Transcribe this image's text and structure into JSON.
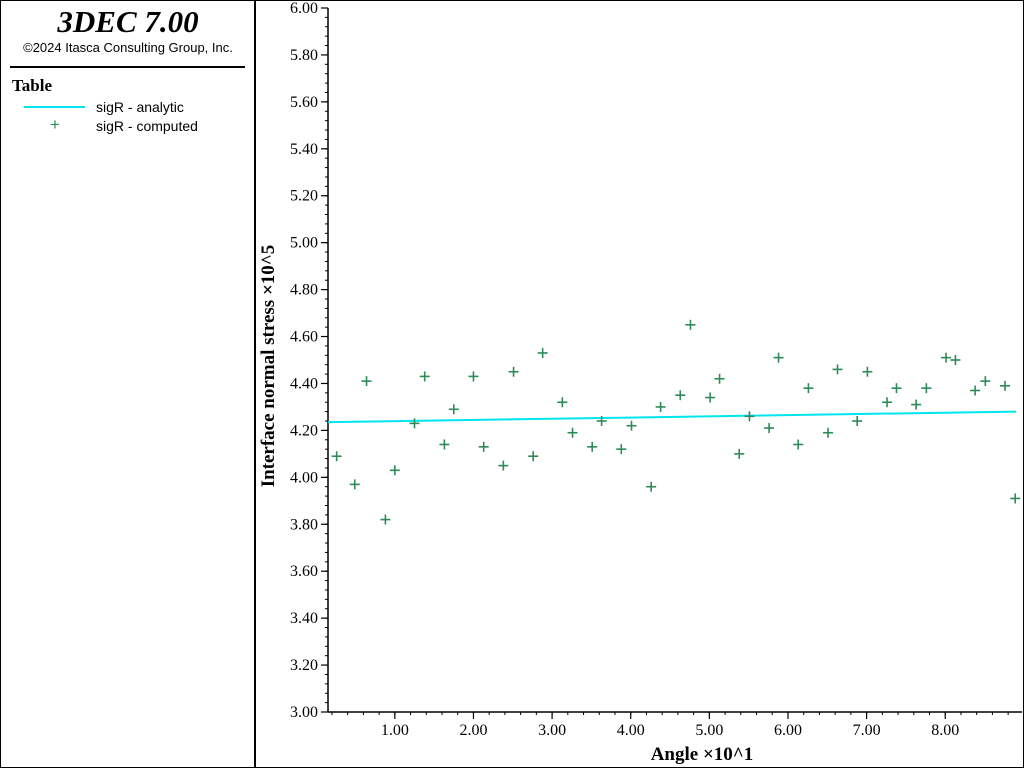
{
  "header": {
    "title": "3DEC 7.00",
    "copyright": "©2024 Itasca Consulting Group, Inc."
  },
  "legend": {
    "title": "Table",
    "items": [
      {
        "label": "sigR - analytic",
        "kind": "line",
        "color": "#00e5f0"
      },
      {
        "label": "sigR - computed",
        "kind": "marker",
        "symbol": "+",
        "color": "#2e8b57"
      }
    ]
  },
  "chart_data": {
    "type": "scatter",
    "title": "",
    "xlabel": "Angle ×10^1",
    "ylabel": "Interface normal stress ×10^5",
    "xlim": [
      0.15,
      8.9
    ],
    "ylim": [
      3.0,
      6.0
    ],
    "x_ticks": [
      1.0,
      2.0,
      3.0,
      4.0,
      5.0,
      6.0,
      7.0,
      8.0
    ],
    "x_tick_labels": [
      "1.00",
      "2.00",
      "3.00",
      "4.00",
      "5.00",
      "6.00",
      "7.00",
      "8.00"
    ],
    "y_ticks": [
      3.0,
      3.2,
      3.4,
      3.6,
      3.8,
      4.0,
      4.2,
      4.4,
      4.6,
      4.8,
      5.0,
      5.2,
      5.4,
      5.6,
      5.8,
      6.0
    ],
    "y_tick_labels": [
      "3.00",
      "3.20",
      "3.40",
      "3.60",
      "3.80",
      "4.00",
      "4.20",
      "4.40",
      "4.60",
      "4.80",
      "5.00",
      "5.20",
      "5.40",
      "5.60",
      "5.80",
      "6.00"
    ],
    "series": [
      {
        "name": "sigR - analytic",
        "style": "line",
        "color": "#00e5f0",
        "x": [
          0.15,
          8.9
        ],
        "y": [
          4.235,
          4.28
        ]
      },
      {
        "name": "sigR - computed",
        "style": "marker",
        "color": "#2e8b57",
        "x": [
          0.26,
          0.49,
          0.64,
          0.88,
          1.0,
          1.25,
          1.38,
          1.63,
          1.75,
          2.0,
          2.13,
          2.38,
          2.51,
          2.76,
          2.88,
          3.13,
          3.26,
          3.51,
          3.63,
          3.88,
          4.01,
          4.26,
          4.38,
          4.63,
          4.76,
          5.01,
          5.13,
          5.38,
          5.51,
          5.76,
          5.88,
          6.13,
          6.26,
          6.51,
          6.63,
          6.88,
          7.01,
          7.26,
          7.38,
          7.63,
          7.76,
          8.01,
          8.13,
          8.38,
          8.51,
          8.76,
          8.89
        ],
        "y": [
          4.09,
          3.97,
          4.41,
          3.82,
          4.03,
          4.23,
          4.43,
          4.14,
          4.29,
          4.43,
          4.13,
          4.05,
          4.45,
          4.09,
          4.53,
          4.32,
          4.19,
          4.13,
          4.24,
          4.12,
          4.22,
          3.96,
          4.3,
          4.35,
          4.65,
          4.34,
          4.42,
          4.1,
          4.26,
          4.21,
          4.51,
          4.14,
          4.38,
          4.19,
          4.46,
          4.24,
          4.45,
          4.32,
          4.38,
          4.31,
          4.38,
          4.51,
          4.5,
          4.37,
          4.41,
          4.39,
          3.91
        ]
      }
    ]
  }
}
